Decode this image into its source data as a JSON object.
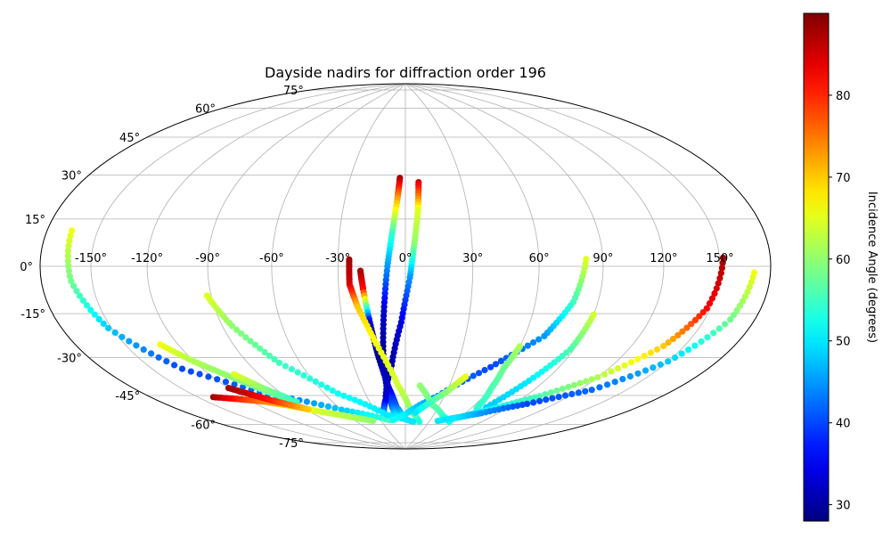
{
  "chart_data": {
    "type": "scatter",
    "projection": "hammer",
    "title": "Dayside nadirs for diffraction order 196",
    "xlabel": "",
    "ylabel": "",
    "grid": true,
    "lon_ticks": [
      "-150°",
      "-120°",
      "-90°",
      "-60°",
      "-30°",
      "0°",
      "30°",
      "60°",
      "90°",
      "120°",
      "150°"
    ],
    "lon_tick_values": [
      -150,
      -120,
      -90,
      -60,
      -30,
      0,
      30,
      60,
      90,
      120,
      150
    ],
    "lat_ticks": [
      "75°",
      "60°",
      "45°",
      "30°",
      "15°",
      "0°",
      "-15°",
      "-30°",
      "-45°",
      "-60°",
      "-75°"
    ],
    "lat_tick_values": [
      75,
      60,
      45,
      30,
      15,
      0,
      -15,
      -30,
      -45,
      -60,
      -75
    ],
    "colorbar": {
      "label": "Incidence Angle (degrees)",
      "colormap": "jet",
      "min": 28,
      "max": 90,
      "ticks": [
        "30",
        "40",
        "50",
        "60",
        "70",
        "80"
      ],
      "tick_values": [
        30,
        40,
        50,
        60,
        70,
        80
      ]
    },
    "series": [
      {
        "points": [
          [
            -20,
            -2,
            88
          ],
          [
            -19,
            -10,
            82
          ],
          [
            -17,
            -25,
            33
          ],
          [
            -15,
            -40,
            29
          ],
          [
            -12,
            -55,
            33
          ],
          [
            -8,
            -66,
            42
          ],
          [
            -3,
            -71,
            50
          ]
        ]
      },
      {
        "points": [
          [
            -3,
            40,
            88
          ],
          [
            -4,
            30,
            72
          ],
          [
            -6,
            15,
            55
          ],
          [
            -8,
            0,
            45
          ],
          [
            -10,
            -20,
            33
          ],
          [
            -12,
            -40,
            29
          ],
          [
            -13,
            -55,
            33
          ],
          [
            -12,
            -66,
            42
          ],
          [
            -10,
            -71,
            50
          ]
        ]
      },
      {
        "points": [
          [
            7,
            38,
            85
          ],
          [
            6,
            25,
            65
          ],
          [
            4,
            10,
            60
          ],
          [
            2,
            -5,
            45
          ],
          [
            -2,
            -25,
            34
          ],
          [
            -8,
            -45,
            30
          ],
          [
            -16,
            -62,
            33
          ],
          [
            -24,
            -71,
            48
          ]
        ]
      },
      {
        "points": [
          [
            -25,
            3,
            88
          ],
          [
            -25,
            -8,
            85
          ],
          [
            -22,
            -18,
            70
          ],
          [
            -15,
            -35,
            66
          ],
          [
            -5,
            -55,
            64
          ],
          [
            5,
            -68,
            60
          ],
          [
            18,
            -74,
            53
          ]
        ]
      },
      {
        "points": [
          [
            -165,
            12,
            66
          ],
          [
            -162,
            -5,
            58
          ],
          [
            -152,
            -22,
            48
          ],
          [
            -132,
            -40,
            40
          ],
          [
            -100,
            -55,
            42
          ],
          [
            -60,
            -66,
            48
          ],
          [
            -20,
            -73,
            55
          ]
        ]
      },
      {
        "points": [
          [
            -92,
            -12,
            65
          ],
          [
            -85,
            -25,
            60
          ],
          [
            -72,
            -42,
            55
          ],
          [
            -50,
            -58,
            52
          ],
          [
            -20,
            -70,
            50
          ],
          [
            10,
            -74,
            50
          ]
        ]
      },
      {
        "points": [
          [
            -130,
            -30,
            66
          ],
          [
            -120,
            -38,
            62
          ],
          [
            -110,
            -45,
            60
          ],
          [
            -98,
            -54,
            57
          ],
          [
            -88,
            -60,
            55
          ]
        ]
      },
      {
        "points": [
          [
            -140,
            -52,
            88
          ],
          [
            -125,
            -55,
            80
          ],
          [
            -110,
            -58,
            74
          ],
          [
            -95,
            -62,
            68
          ],
          [
            -80,
            -66,
            64
          ],
          [
            -60,
            -70,
            62
          ],
          [
            -40,
            -73,
            60
          ]
        ]
      },
      {
        "points": [
          [
            -120,
            -50,
            88
          ],
          [
            -112,
            -54,
            85
          ],
          [
            -104,
            -58,
            80
          ],
          [
            -96,
            -61,
            75
          ],
          [
            -88,
            -64,
            70
          ]
        ]
      },
      {
        "points": [
          [
            -105,
            -45,
            65
          ],
          [
            -98,
            -52,
            60
          ],
          [
            -90,
            -58,
            55
          ]
        ]
      },
      {
        "points": [
          [
            82,
            3,
            65
          ],
          [
            78,
            -15,
            55
          ],
          [
            70,
            -30,
            45
          ],
          [
            50,
            -45,
            40
          ],
          [
            25,
            -60,
            44
          ],
          [
            0,
            -70,
            50
          ],
          [
            -15,
            -73,
            52
          ]
        ]
      },
      {
        "points": [
          [
            90,
            -20,
            64
          ],
          [
            88,
            -35,
            56
          ],
          [
            80,
            -50,
            50
          ],
          [
            72,
            -64,
            48
          ]
        ]
      },
      {
        "points": [
          [
            60,
            -35,
            62
          ],
          [
            58,
            -45,
            58
          ],
          [
            60,
            -55,
            56
          ],
          [
            65,
            -65,
            54
          ]
        ]
      },
      {
        "points": [
          [
            10,
            -55,
            60
          ],
          [
            22,
            -64,
            58
          ],
          [
            40,
            -70,
            55
          ],
          [
            55,
            -73,
            52
          ]
        ]
      },
      {
        "points": [
          [
            38,
            -50,
            66
          ],
          [
            30,
            -58,
            60
          ],
          [
            20,
            -64,
            55
          ],
          [
            10,
            -69,
            50
          ]
        ]
      },
      {
        "points": [
          [
            152,
            3,
            88
          ],
          [
            148,
            -15,
            82
          ],
          [
            138,
            -30,
            70
          ],
          [
            120,
            -45,
            62
          ],
          [
            100,
            -56,
            56
          ],
          [
            80,
            -64,
            52
          ],
          [
            60,
            -70,
            50
          ],
          [
            40,
            -73,
            50
          ]
        ]
      },
      {
        "points": [
          [
            170,
            -2,
            66
          ],
          [
            165,
            -18,
            58
          ],
          [
            150,
            -35,
            48
          ],
          [
            128,
            -50,
            42
          ],
          [
            100,
            -60,
            40
          ],
          [
            75,
            -67,
            45
          ],
          [
            55,
            -71,
            50
          ]
        ]
      }
    ]
  }
}
